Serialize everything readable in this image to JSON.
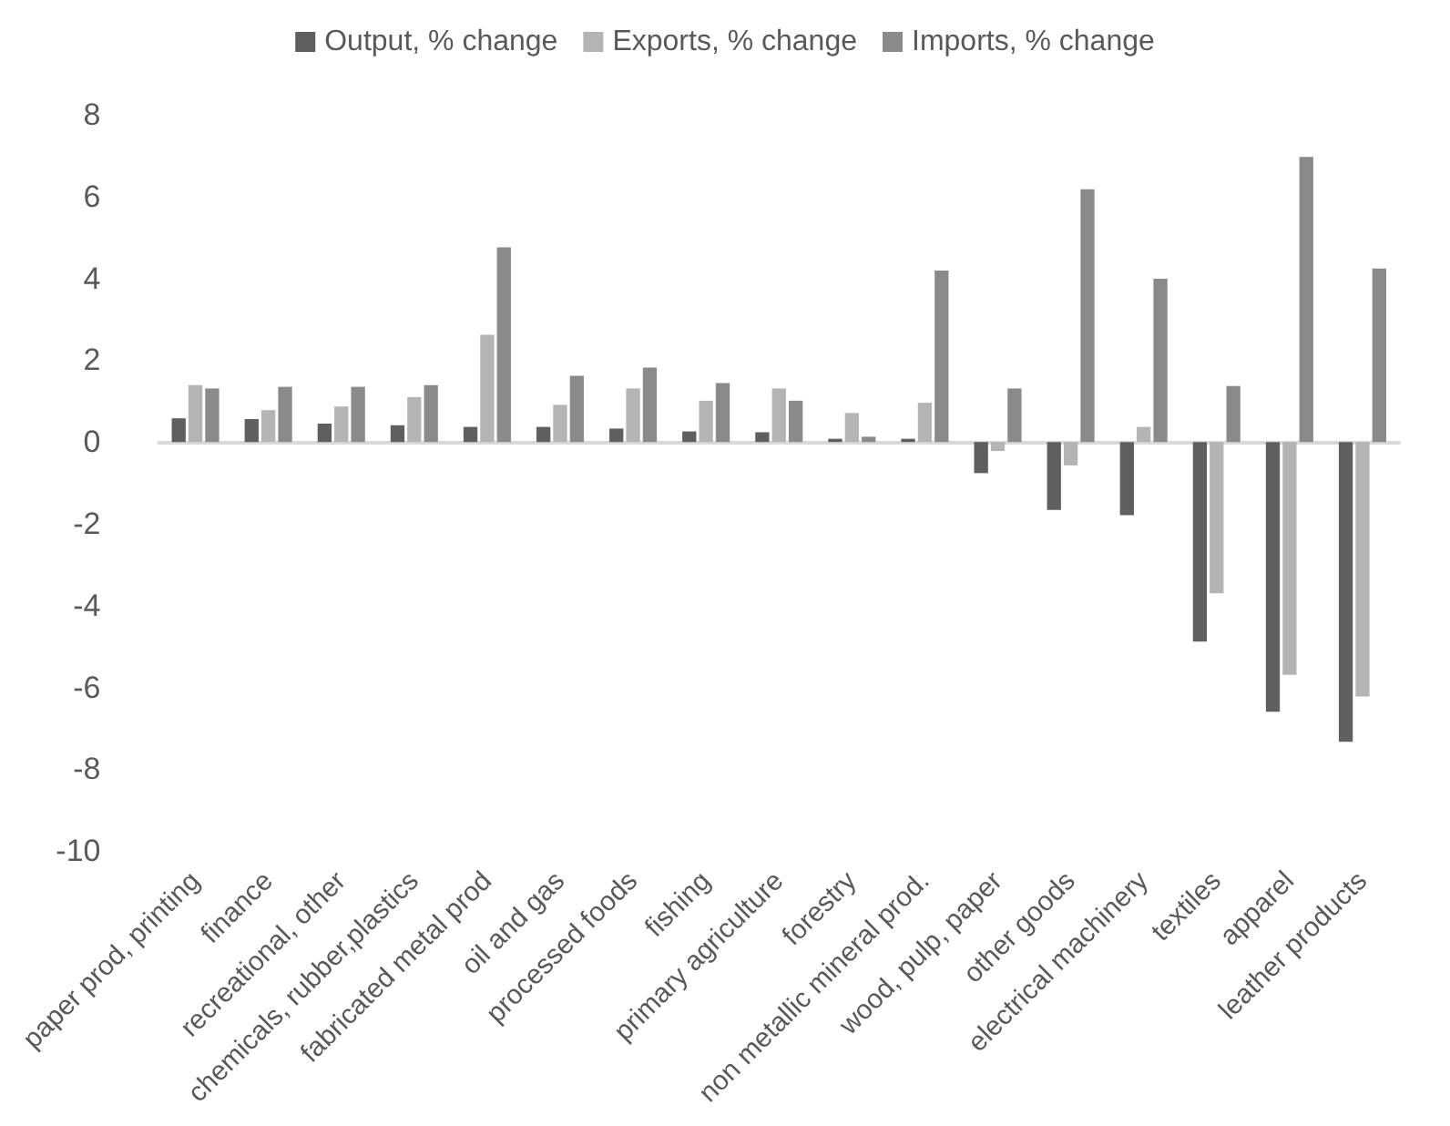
{
  "chart_data": {
    "type": "bar",
    "categories": [
      "paper prod, printing",
      "finance",
      "recreational, other",
      "chemicals, rubber,plastics",
      "fabricated metal prod",
      "oil and gas",
      "processed foods",
      "fishing",
      "primary agriculture",
      "forestry",
      "non metallic mineral prod.",
      "wood, pulp, paper",
      "other goods",
      "electrical machinery",
      "textiles",
      "apparel",
      "leather products"
    ],
    "series": [
      {
        "name": "Output, % change",
        "color": "#5f5f5f",
        "values": [
          0.58,
          0.56,
          0.45,
          0.41,
          0.37,
          0.37,
          0.33,
          0.26,
          0.24,
          0.08,
          0.08,
          -0.76,
          -1.66,
          -1.79,
          -4.88,
          -6.59,
          -7.33
        ]
      },
      {
        "name": "Exports, % change",
        "color": "#b4b4b4",
        "values": [
          1.39,
          0.78,
          0.87,
          1.1,
          2.62,
          0.91,
          1.31,
          1.01,
          1.31,
          0.71,
          0.96,
          -0.22,
          -0.57,
          0.37,
          -3.7,
          -5.69,
          -6.22
        ]
      },
      {
        "name": "Imports, % change",
        "color": "#8a8a8a",
        "values": [
          1.31,
          1.35,
          1.35,
          1.39,
          4.76,
          1.62,
          1.82,
          1.44,
          1.01,
          0.13,
          4.19,
          1.31,
          6.18,
          3.99,
          1.37,
          6.97,
          4.24
        ]
      }
    ],
    "ylim": [
      -10,
      8
    ],
    "yticks": [
      -10,
      -8,
      -6,
      -4,
      -2,
      0,
      2,
      4,
      6,
      8
    ],
    "legend": "top"
  }
}
